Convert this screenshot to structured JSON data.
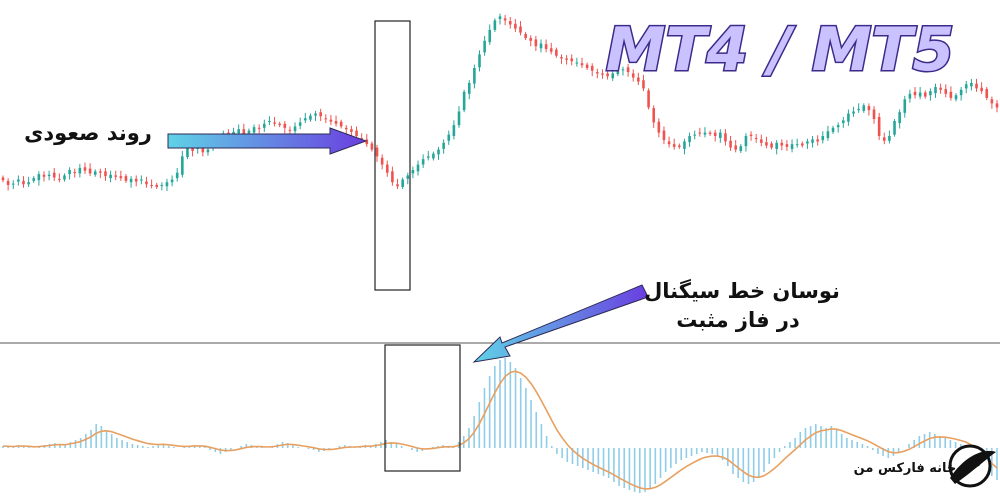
{
  "header": {
    "title": "MT4 / MT5"
  },
  "annotations": {
    "uptrend": "روند صعودی",
    "signal_line_1": "نوسان خط سیگنال",
    "signal_line_2": "در فاز مثبت"
  },
  "brand": {
    "name": "خانه فارکس من"
  },
  "colors": {
    "bull": "#26a69a",
    "bear": "#ef5350",
    "histogram": "#8fcde8",
    "signal": "#e8a060",
    "title_fill": "#c9c2ff",
    "title_stroke": "#3d2a8a",
    "arrow_start": "#5fd3e6",
    "arrow_end": "#6a3de0",
    "box": "#222222"
  },
  "chart_data": {
    "type": "candlestick",
    "price": {
      "close": [
        235,
        228,
        230,
        236,
        229,
        232,
        238,
        244,
        240,
        243,
        239,
        236,
        242,
        250,
        246,
        253,
        249,
        245,
        248,
        246,
        241,
        243,
        240,
        238,
        234,
        237,
        233,
        236,
        229,
        227,
        225,
        228,
        232,
        236,
        246,
        270,
        282,
        278,
        284,
        276,
        280,
        288,
        296,
        304,
        300,
        306,
        310,
        302,
        308,
        313,
        311,
        318,
        322,
        318,
        316,
        312,
        308,
        314,
        320,
        326,
        330,
        333,
        329,
        325,
        321,
        318,
        314,
        310,
        306,
        300,
        296,
        288,
        280,
        270,
        258,
        246,
        232,
        226,
        236,
        242,
        250,
        258,
        266,
        270,
        274,
        280,
        290,
        302,
        316,
        336,
        365,
        378,
        400,
        420,
        440,
        456,
        470,
        476,
        470,
        464,
        458,
        452,
        444,
        440,
        432,
        436,
        428,
        424,
        418,
        414,
        412,
        410,
        408,
        404,
        400,
        396,
        392,
        390,
        388,
        392,
        396,
        398,
        394,
        386,
        380,
        370,
        342,
        320,
        305,
        294,
        288,
        284,
        284,
        292,
        300,
        302,
        304,
        305,
        303,
        300,
        305,
        292,
        283,
        280,
        285,
        300,
        300,
        296,
        290,
        286,
        283,
        290,
        286,
        284,
        288,
        288,
        286,
        292,
        295,
        292,
        300,
        307,
        312,
        316,
        323,
        333,
        336,
        340,
        345,
        338,
        325,
        300,
        293,
        300,
        322,
        335,
        354,
        362,
        360,
        364,
        358,
        366,
        372,
        368,
        362,
        356,
        360,
        368,
        376,
        378,
        370,
        366,
        356,
        348,
        342
      ],
      "ylim": [
        0,
        500
      ],
      "note_box": "uptrend"
    },
    "macd": {
      "histogram": [
        2,
        1,
        1,
        3,
        2,
        1,
        0,
        2,
        3,
        4,
        5,
        4,
        3,
        6,
        8,
        10,
        14,
        18,
        24,
        22,
        18,
        14,
        10,
        8,
        6,
        4,
        3,
        2,
        1,
        2,
        3,
        4,
        2,
        1,
        0,
        1,
        2,
        3,
        2,
        1,
        -2,
        -4,
        -6,
        -4,
        -2,
        0,
        2,
        4,
        3,
        2,
        1,
        0,
        2,
        4,
        6,
        5,
        3,
        1,
        0,
        -1,
        -2,
        -4,
        -3,
        -2,
        0,
        2,
        3,
        2,
        1,
        2,
        3,
        2,
        4,
        6,
        8,
        6,
        4,
        2,
        0,
        -2,
        -4,
        -3,
        -1,
        1,
        2,
        3,
        2,
        1,
        6,
        12,
        20,
        32,
        46,
        60,
        72,
        82,
        88,
        90,
        86,
        80,
        70,
        60,
        48,
        36,
        24,
        12,
        2,
        -6,
        -10,
        -14,
        -16,
        -18,
        -20,
        -22,
        -24,
        -26,
        -28,
        -30,
        -34,
        -38,
        -40,
        -42,
        -44,
        -45,
        -44,
        -40,
        -36,
        -30,
        -24,
        -20,
        -16,
        -12,
        -10,
        -8,
        -6,
        -4,
        -5,
        -6,
        -8,
        -12,
        -18,
        -26,
        -30,
        -34,
        -36,
        -34,
        -30,
        -24,
        -16,
        -10,
        -4,
        2,
        6,
        10,
        16,
        20,
        22,
        24,
        22,
        20,
        22,
        18,
        14,
        10,
        8,
        6,
        4,
        2,
        -2,
        -6,
        -8,
        -10,
        -8,
        -4,
        0,
        4,
        8,
        12,
        14,
        16,
        14,
        12,
        10,
        8,
        6,
        4,
        2,
        -4,
        -12,
        -18,
        -22,
        -28,
        -32
      ],
      "ylim": [
        -100,
        100
      ],
      "note_box": "signal line oscillating in positive phase"
    }
  }
}
